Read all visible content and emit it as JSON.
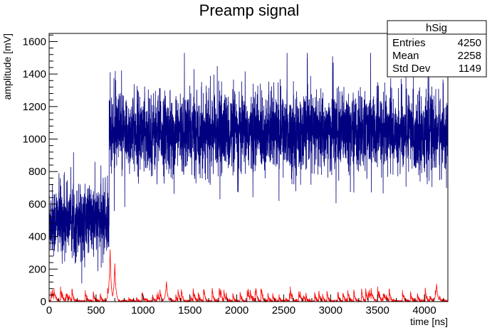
{
  "chart_data": {
    "type": "line",
    "title": "Preamp signal",
    "xlabel": "time [ns]",
    "ylabel": "amplitude [mV]",
    "xlim": [
      0,
      4250
    ],
    "ylim": [
      0,
      1650
    ],
    "x_ticks": [
      0,
      500,
      1000,
      1500,
      2000,
      2500,
      3000,
      3500,
      4000
    ],
    "y_ticks": [
      0,
      200,
      400,
      600,
      800,
      1000,
      1200,
      1400,
      1600
    ],
    "grid": false,
    "series": [
      {
        "color": "#000080",
        "style": "noisy-step",
        "segments": [
          {
            "x_start": 0,
            "x_end": 640,
            "mean": 500,
            "noise": 110
          },
          {
            "x_start": 640,
            "x_end": 4250,
            "mean": 1040,
            "noise": 120
          }
        ],
        "peak_max": 1530,
        "min": 90
      },
      {
        "color": "#ff0000",
        "style": "noisy-peaks",
        "baseline": 0,
        "typical_peak": 70,
        "peaks": [
          {
            "x": 650,
            "y": 320
          },
          {
            "x": 700,
            "y": 240
          },
          {
            "x": 1250,
            "y": 130
          },
          {
            "x": 4130,
            "y": 110
          }
        ]
      }
    ],
    "stats_box": {
      "title": "hSig",
      "rows": [
        {
          "label": "Entries",
          "value": "4250"
        },
        {
          "label": "Mean",
          "value": "2258"
        },
        {
          "label": "Std Dev",
          "value": "1149"
        }
      ]
    },
    "colors": {
      "blue_series": "#000080",
      "red_series": "#ff0000"
    }
  }
}
